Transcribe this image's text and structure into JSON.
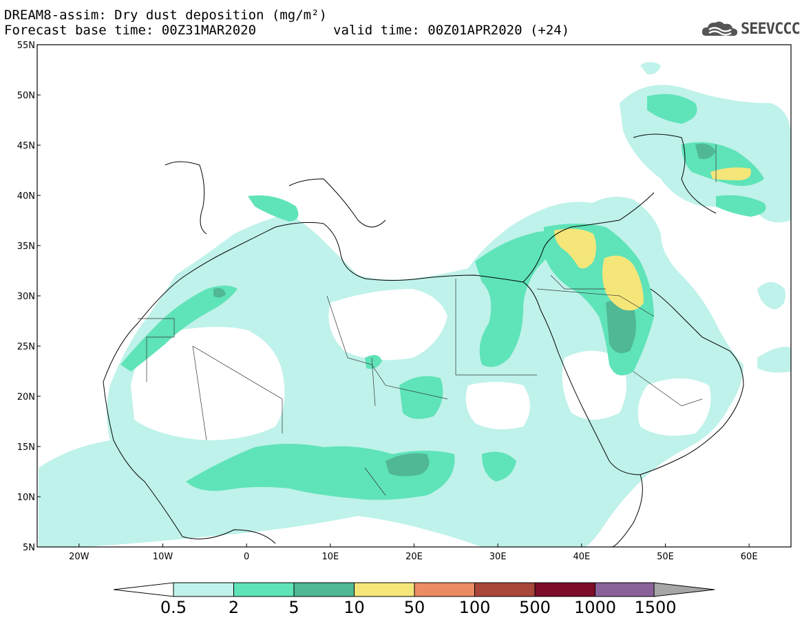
{
  "header": {
    "title_line1": "DREAM8-assim: Dry dust deposition (mg/m²)",
    "title_line2": "Forecast base time: 00Z31MAR2020",
    "valid_time": "valid time: 00Z01APR2020 (+24)"
  },
  "logo": {
    "text": "SEEVCCC",
    "icon": "cloud-icon"
  },
  "map": {
    "lon_range": [
      -25,
      65
    ],
    "lat_range": [
      5,
      55
    ],
    "lat_ticks": [
      "55N",
      "50N",
      "45N",
      "40N",
      "35N",
      "30N",
      "25N",
      "20N",
      "15N",
      "10N",
      "5N"
    ],
    "lon_ticks": [
      "20W",
      "10W",
      "0",
      "10E",
      "20E",
      "30E",
      "40E",
      "50E",
      "60E"
    ]
  },
  "legend": {
    "labels": [
      "0.5",
      "2",
      "5",
      "10",
      "50",
      "100",
      "500",
      "1000",
      "1500"
    ],
    "colors": [
      "#bff2ea",
      "#5fe3b8",
      "#50b894",
      "#f5e67a",
      "#ea8c64",
      "#a8473a",
      "#7c0e2a",
      "#8a629a",
      "#a6a6a6"
    ]
  }
}
